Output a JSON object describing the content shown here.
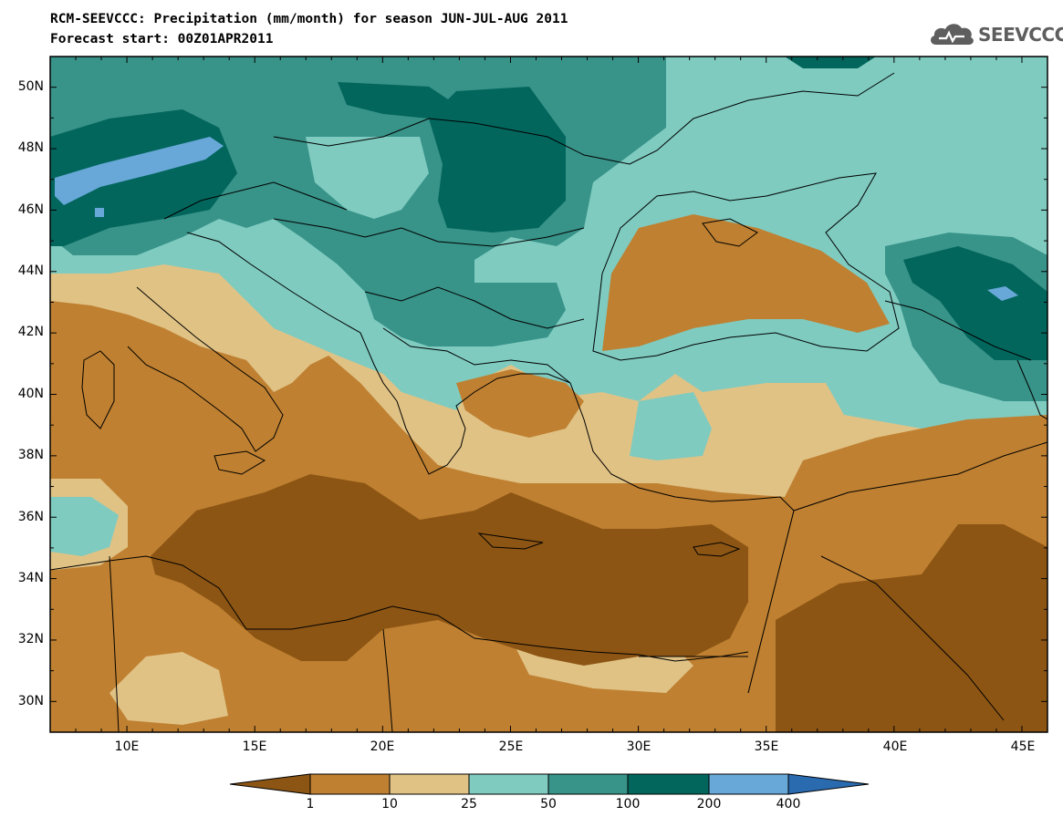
{
  "title": {
    "line1": "RCM-SEEVCCC: Precipitation (mm/month) for season JUN-JUL-AUG 2011",
    "line2": "Forecast start: 00Z01APR2011"
  },
  "logo": {
    "text": "SEEVCCC",
    "icon": "cloud-logo-icon"
  },
  "map": {
    "lon_range": [
      7,
      46
    ],
    "lat_range": [
      29,
      51
    ],
    "y_ticks": [
      "50N",
      "48N",
      "46N",
      "44N",
      "42N",
      "40N",
      "38N",
      "36N",
      "34N",
      "32N",
      "30N"
    ],
    "x_ticks": [
      "10E",
      "15E",
      "20E",
      "25E",
      "30E",
      "35E",
      "40E",
      "45E"
    ],
    "region": "Eastern Mediterranean, Balkans, Black Sea"
  },
  "colorbar": {
    "labels": [
      "1",
      "10",
      "25",
      "50",
      "100",
      "200",
      "400"
    ],
    "colors": [
      "#8c5514",
      "#bf8031",
      "#e0c285",
      "#7fcbc0",
      "#389389",
      "#02665d",
      "#68a8d8",
      "#2a6bb0"
    ]
  },
  "colors": {
    "c0": "#8c5514",
    "c1": "#bf8031",
    "c2": "#e0c285",
    "c3": "#7fcbc0",
    "c4": "#389389",
    "c5": "#02665d",
    "c6": "#68a8d8"
  }
}
